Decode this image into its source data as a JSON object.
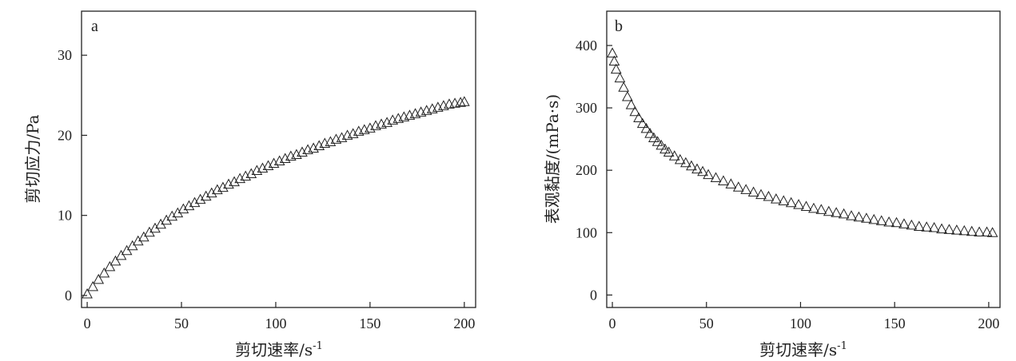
{
  "chart_data": [
    {
      "type": "scatter",
      "panel_label": "a",
      "xlabel": "剪切速率/s",
      "xlabel_sup": "-1",
      "ylabel": "剪切应力/Pa",
      "xlim": [
        -3,
        206
      ],
      "ylim": [
        -1.5,
        35.5
      ],
      "xticks": [
        0,
        50,
        100,
        150,
        200
      ],
      "yticks": [
        0,
        10,
        20,
        30
      ],
      "grid": false,
      "marker": "open-triangle",
      "series": [
        {
          "x": [
            0,
            3,
            6,
            9,
            12,
            15,
            18,
            21,
            24,
            27,
            30,
            33,
            36,
            39,
            42,
            45,
            48,
            51,
            54,
            57,
            60,
            63,
            66,
            69,
            72,
            75,
            78,
            81,
            84,
            87,
            90,
            93,
            96,
            99,
            102,
            105,
            108,
            111,
            114,
            117,
            120,
            123,
            126,
            129,
            132,
            135,
            138,
            141,
            144,
            147,
            150,
            153,
            156,
            159,
            162,
            165,
            168,
            171,
            174,
            177,
            180,
            183,
            186,
            189,
            192,
            195,
            198,
            200
          ],
          "y": [
            0.2,
            1.1,
            2.0,
            2.8,
            3.6,
            4.3,
            5.0,
            5.6,
            6.2,
            6.8,
            7.3,
            7.9,
            8.4,
            8.9,
            9.4,
            9.9,
            10.3,
            10.8,
            11.2,
            11.6,
            12.0,
            12.4,
            12.8,
            13.2,
            13.5,
            13.9,
            14.2,
            14.6,
            14.9,
            15.2,
            15.6,
            15.9,
            16.2,
            16.5,
            16.8,
            17.1,
            17.4,
            17.6,
            17.9,
            18.2,
            18.4,
            18.7,
            19.0,
            19.2,
            19.5,
            19.7,
            20.0,
            20.2,
            20.5,
            20.7,
            20.9,
            21.2,
            21.4,
            21.6,
            21.9,
            22.1,
            22.3,
            22.5,
            22.7,
            22.9,
            23.1,
            23.3,
            23.5,
            23.7,
            23.9,
            24.0,
            24.1,
            24.2
          ]
        }
      ]
    },
    {
      "type": "scatter",
      "panel_label": "b",
      "xlabel": "剪切速率/s",
      "xlabel_sup": "-1",
      "ylabel": "表观黏度/(mPa·s)",
      "xlim": [
        -3,
        206
      ],
      "ylim": [
        -20,
        455
      ],
      "xticks": [
        0,
        50,
        100,
        150,
        200
      ],
      "yticks": [
        0,
        100,
        200,
        300,
        400
      ],
      "grid": false,
      "marker": "open-triangle",
      "series": [
        {
          "x": [
            0,
            1,
            2,
            4,
            6,
            8,
            10,
            12,
            14,
            16,
            18,
            20,
            22,
            24,
            26,
            28,
            30,
            33,
            36,
            39,
            42,
            45,
            48,
            51,
            55,
            59,
            63,
            67,
            71,
            75,
            79,
            83,
            87,
            91,
            95,
            99,
            103,
            107,
            111,
            115,
            119,
            123,
            127,
            131,
            135,
            139,
            143,
            147,
            151,
            155,
            159,
            163,
            167,
            171,
            175,
            179,
            183,
            187,
            191,
            195,
            199,
            202
          ],
          "y": [
            388,
            375,
            362,
            348,
            333,
            318,
            305,
            294,
            284,
            275,
            267,
            259,
            252,
            246,
            240,
            234,
            229,
            223,
            217,
            212,
            207,
            202,
            198,
            193,
            188,
            183,
            178,
            173,
            169,
            165,
            161,
            158,
            154,
            151,
            148,
            145,
            142,
            139,
            137,
            134,
            132,
            130,
            127,
            125,
            123,
            121,
            119,
            117,
            116,
            114,
            112,
            110,
            109,
            108,
            106,
            105,
            104,
            103,
            102,
            101,
            101,
            100
          ]
        }
      ]
    }
  ]
}
